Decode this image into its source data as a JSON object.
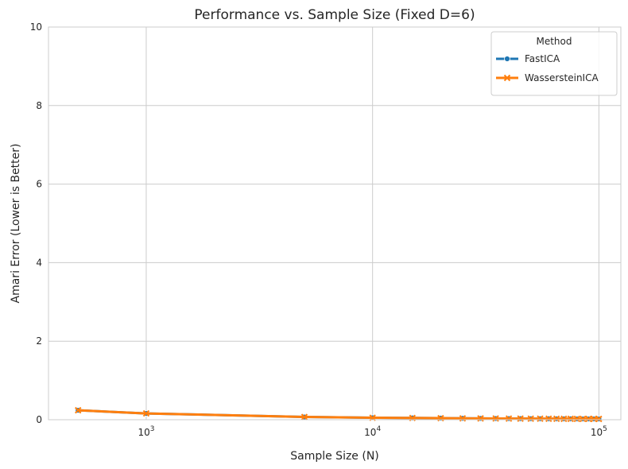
{
  "chart_data": {
    "type": "line",
    "title": "Performance vs. Sample Size (Fixed D=6)",
    "xlabel": "Sample Size (N)",
    "ylabel": "Amari Error (Lower is Better)",
    "xscale": "log",
    "xlim": [
      370,
      125000
    ],
    "ylim": [
      0,
      10
    ],
    "yticks": [
      0,
      2,
      4,
      6,
      8,
      10
    ],
    "xticks": [
      {
        "value": 1000,
        "base": "10",
        "exp": "3"
      },
      {
        "value": 10000,
        "base": "10",
        "exp": "4"
      },
      {
        "value": 100000,
        "base": "10",
        "exp": "5"
      }
    ],
    "grid": true,
    "legend": {
      "title": "Method",
      "placement": "top-right"
    },
    "x": [
      500,
      1000,
      5000,
      10000,
      15000,
      20000,
      25000,
      30000,
      35000,
      40000,
      45000,
      50000,
      55000,
      60000,
      65000,
      70000,
      75000,
      80000,
      85000,
      90000,
      95000,
      100000
    ],
    "series": [
      {
        "name": "FastICA",
        "color": "#1f77b4",
        "marker": "circle",
        "values": [
          0.24,
          0.16,
          0.07,
          0.05,
          0.045,
          0.04,
          0.035,
          0.033,
          0.031,
          0.029,
          0.028,
          0.027,
          0.026,
          0.025,
          0.024,
          0.023,
          0.023,
          0.022,
          0.022,
          0.021,
          0.021,
          0.02
        ]
      },
      {
        "name": "WassersteinICA",
        "color": "#ff7f0e",
        "marker": "x",
        "values": [
          0.24,
          0.16,
          0.07,
          0.05,
          0.045,
          0.04,
          0.035,
          0.033,
          0.031,
          0.029,
          0.028,
          0.027,
          0.026,
          0.025,
          0.024,
          0.023,
          0.023,
          0.022,
          0.022,
          0.021,
          0.021,
          0.02
        ]
      }
    ]
  }
}
